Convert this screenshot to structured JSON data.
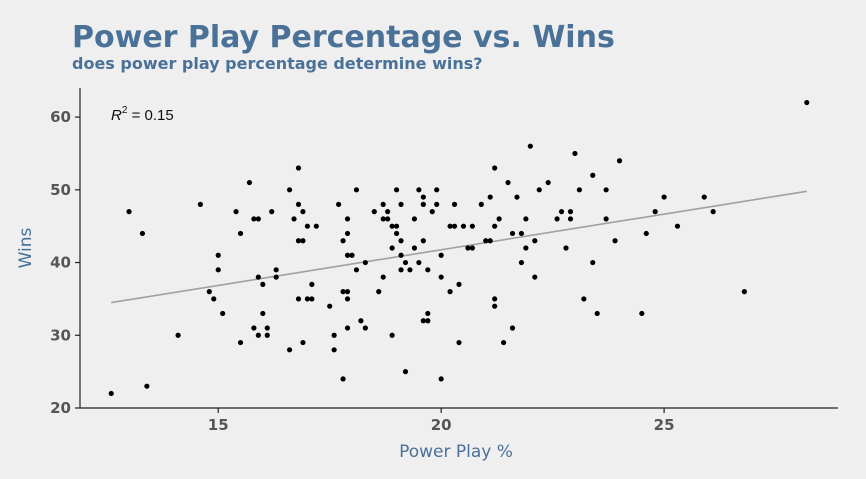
{
  "chart_data": {
    "type": "scatter",
    "title": "Power Play Percentage vs. Wins",
    "subtitle": "does power play percentage determine wins?",
    "xlabel": "Power Play %",
    "ylabel": "Wins",
    "xlim": [
      11.9,
      28.9
    ],
    "ylim": [
      20,
      64
    ],
    "xticks": [
      15,
      20,
      25
    ],
    "yticks": [
      20,
      30,
      40,
      50,
      60
    ],
    "grid": false,
    "annotation": {
      "prefix": "R",
      "superscript": "2",
      "suffix": " = 0.15"
    },
    "trendline": {
      "x": [
        12.6,
        28.2
      ],
      "y": [
        34.5,
        49.8
      ],
      "color": "#a0a0a0"
    },
    "point_color": "#000000",
    "points": [
      [
        12.6,
        22
      ],
      [
        13.0,
        47
      ],
      [
        13.3,
        44
      ],
      [
        13.4,
        23
      ],
      [
        14.1,
        30
      ],
      [
        14.6,
        48
      ],
      [
        14.8,
        36
      ],
      [
        14.9,
        35
      ],
      [
        15.0,
        41
      ],
      [
        15.0,
        39
      ],
      [
        15.1,
        33
      ],
      [
        15.4,
        47
      ],
      [
        15.5,
        44
      ],
      [
        15.5,
        29
      ],
      [
        15.7,
        51
      ],
      [
        15.8,
        46
      ],
      [
        15.8,
        31
      ],
      [
        15.9,
        46
      ],
      [
        15.9,
        38
      ],
      [
        15.9,
        30
      ],
      [
        16.0,
        37
      ],
      [
        16.0,
        33
      ],
      [
        16.1,
        31
      ],
      [
        16.1,
        30
      ],
      [
        16.2,
        47
      ],
      [
        16.3,
        39
      ],
      [
        16.3,
        38
      ],
      [
        16.6,
        50
      ],
      [
        16.6,
        28
      ],
      [
        16.7,
        46
      ],
      [
        16.8,
        53
      ],
      [
        16.8,
        48
      ],
      [
        16.8,
        43
      ],
      [
        16.8,
        35
      ],
      [
        16.9,
        47
      ],
      [
        16.9,
        43
      ],
      [
        16.9,
        29
      ],
      [
        17.0,
        45
      ],
      [
        17.0,
        35
      ],
      [
        17.1,
        37
      ],
      [
        17.1,
        35
      ],
      [
        17.2,
        45
      ],
      [
        17.5,
        34
      ],
      [
        17.6,
        28
      ],
      [
        17.6,
        30
      ],
      [
        17.7,
        48
      ],
      [
        17.8,
        43
      ],
      [
        17.8,
        36
      ],
      [
        17.8,
        24
      ],
      [
        17.9,
        46
      ],
      [
        17.9,
        44
      ],
      [
        17.9,
        41
      ],
      [
        17.9,
        36
      ],
      [
        17.9,
        35
      ],
      [
        17.9,
        31
      ],
      [
        18.0,
        41
      ],
      [
        18.1,
        50
      ],
      [
        18.1,
        39
      ],
      [
        18.2,
        32
      ],
      [
        18.3,
        40
      ],
      [
        18.3,
        31
      ],
      [
        18.5,
        47
      ],
      [
        18.6,
        36
      ],
      [
        18.7,
        38
      ],
      [
        18.7,
        48
      ],
      [
        18.7,
        46
      ],
      [
        18.8,
        47
      ],
      [
        18.8,
        46
      ],
      [
        18.9,
        45
      ],
      [
        18.9,
        42
      ],
      [
        18.9,
        30
      ],
      [
        19.0,
        50
      ],
      [
        19.0,
        45
      ],
      [
        19.0,
        44
      ],
      [
        19.1,
        48
      ],
      [
        19.1,
        43
      ],
      [
        19.1,
        41
      ],
      [
        19.1,
        39
      ],
      [
        19.2,
        40
      ],
      [
        19.2,
        25
      ],
      [
        19.3,
        39
      ],
      [
        19.4,
        46
      ],
      [
        19.4,
        42
      ],
      [
        19.5,
        50
      ],
      [
        19.5,
        40
      ],
      [
        19.6,
        49
      ],
      [
        19.6,
        48
      ],
      [
        19.6,
        43
      ],
      [
        19.6,
        32
      ],
      [
        19.7,
        39
      ],
      [
        19.7,
        33
      ],
      [
        19.7,
        32
      ],
      [
        19.8,
        47
      ],
      [
        19.9,
        50
      ],
      [
        19.9,
        48
      ],
      [
        20.0,
        41
      ],
      [
        20.0,
        38
      ],
      [
        20.0,
        24
      ],
      [
        20.2,
        45
      ],
      [
        20.2,
        36
      ],
      [
        20.3,
        48
      ],
      [
        20.3,
        45
      ],
      [
        20.4,
        37
      ],
      [
        20.4,
        29
      ],
      [
        20.5,
        45
      ],
      [
        20.6,
        42
      ],
      [
        20.7,
        45
      ],
      [
        20.7,
        42
      ],
      [
        20.9,
        48
      ],
      [
        21.0,
        43
      ],
      [
        21.1,
        49
      ],
      [
        21.1,
        43
      ],
      [
        21.2,
        53
      ],
      [
        21.2,
        45
      ],
      [
        21.2,
        35
      ],
      [
        21.2,
        34
      ],
      [
        21.3,
        46
      ],
      [
        21.4,
        29
      ],
      [
        21.5,
        51
      ],
      [
        21.6,
        44
      ],
      [
        21.6,
        31
      ],
      [
        21.7,
        49
      ],
      [
        21.8,
        44
      ],
      [
        21.8,
        40
      ],
      [
        21.9,
        42
      ],
      [
        21.9,
        46
      ],
      [
        22.0,
        56
      ],
      [
        22.1,
        43
      ],
      [
        22.1,
        38
      ],
      [
        22.2,
        50
      ],
      [
        22.4,
        51
      ],
      [
        22.6,
        46
      ],
      [
        22.7,
        47
      ],
      [
        22.8,
        42
      ],
      [
        22.9,
        47
      ],
      [
        22.9,
        46
      ],
      [
        23.0,
        55
      ],
      [
        23.1,
        50
      ],
      [
        23.2,
        35
      ],
      [
        23.4,
        52
      ],
      [
        23.4,
        40
      ],
      [
        23.5,
        33
      ],
      [
        23.7,
        50
      ],
      [
        23.7,
        46
      ],
      [
        23.9,
        43
      ],
      [
        24.0,
        54
      ],
      [
        24.5,
        33
      ],
      [
        24.6,
        44
      ],
      [
        24.8,
        47
      ],
      [
        25.0,
        49
      ],
      [
        25.3,
        45
      ],
      [
        25.9,
        49
      ],
      [
        26.1,
        47
      ],
      [
        26.8,
        36
      ],
      [
        28.2,
        62
      ]
    ]
  }
}
